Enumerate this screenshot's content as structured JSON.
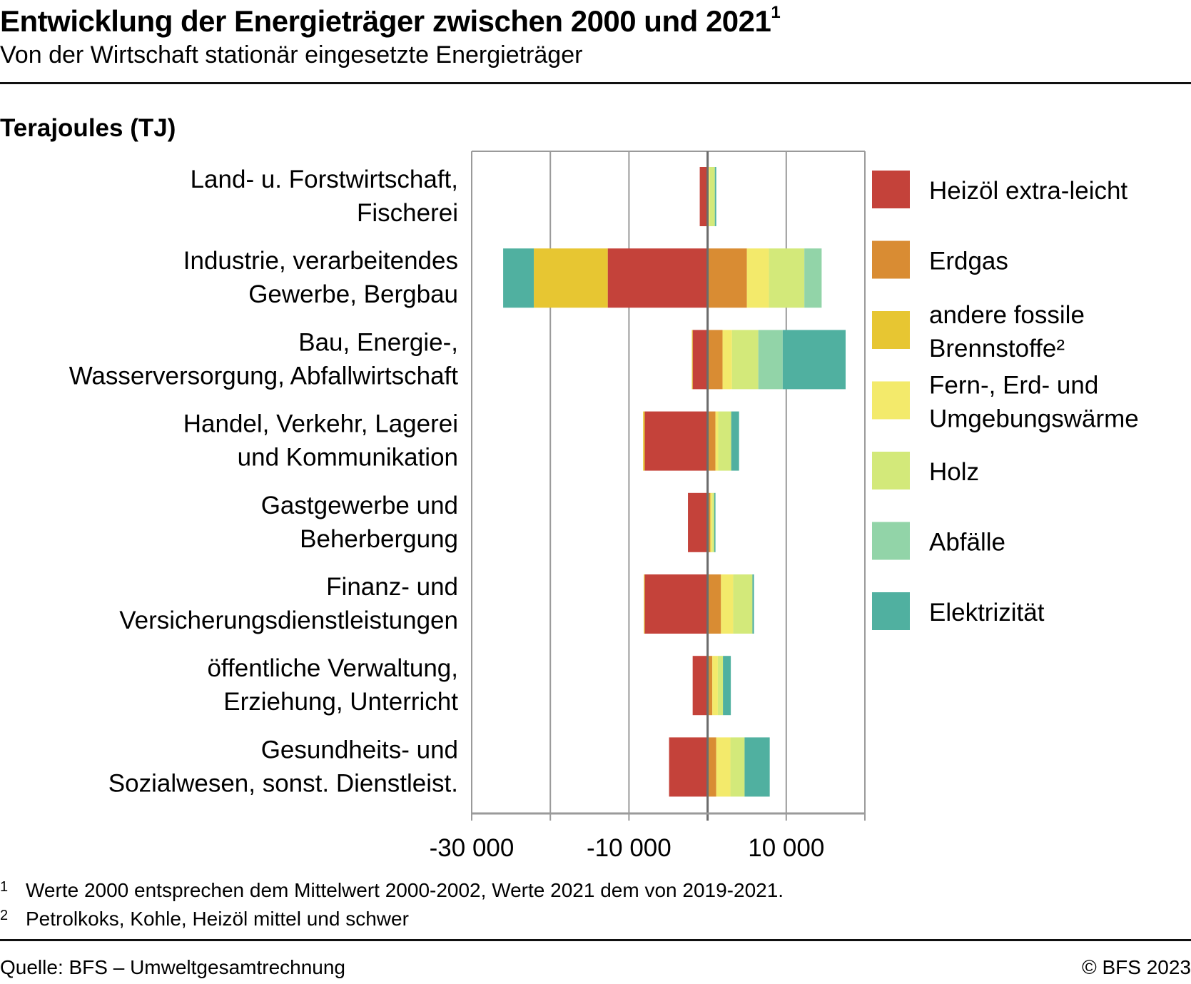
{
  "header": {
    "title": "Entwicklung der Energieträger zwischen 2000 und 2021",
    "title_footnote_mark": "1",
    "subtitle": "Von der Wirtschaft stationär eingesetzte Energieträger"
  },
  "chart_data": {
    "type": "bar",
    "orientation": "horizontal",
    "stacked": "diverging",
    "title": "Entwicklung der Energieträger zwischen 2000 und 2021",
    "subtitle": "Von der Wirtschaft stationär eingesetzte Energieträger",
    "unit_label": "Terajoules (TJ)",
    "xlabel": "",
    "ylabel": "",
    "xlim": [
      -30000,
      20000
    ],
    "x_gridlines": [
      -30000,
      -20000,
      -10000,
      0,
      10000,
      20000
    ],
    "x_tick_labels": [
      {
        "value": -30000,
        "label": "-30 000"
      },
      {
        "value": -10000,
        "label": "-10 000"
      },
      {
        "value": 10000,
        "label": "10 000"
      }
    ],
    "grid": true,
    "legend_position": "right",
    "categories": [
      [
        "Land- u. Forstwirtschaft,",
        "Fischerei"
      ],
      [
        "Industrie, verarbeitendes",
        "Gewerbe, Bergbau"
      ],
      [
        "Bau, Energie-,",
        "Wasserversorgung, Abfallwirtschaft"
      ],
      [
        "Handel, Verkehr, Lagerei",
        "und Kommunikation"
      ],
      [
        "Gastgewerbe und",
        "Beherbergung"
      ],
      [
        "Finanz- und",
        "Versicherungsdienstleistungen"
      ],
      [
        "öffentliche Verwaltung,",
        "Erziehung, Unterricht"
      ],
      [
        "Gesundheits- und",
        "Sozialwesen, sonst. Dienstleist."
      ]
    ],
    "series": [
      {
        "name": "Heizöl extra-leicht",
        "legend_lines": [
          "Heizöl extra-leicht"
        ],
        "color": "#c4423a",
        "values": [
          -1000,
          -12700,
          -1900,
          -8000,
          -2500,
          -8000,
          -1900,
          -4900
        ]
      },
      {
        "name": "Erdgas",
        "legend_lines": [
          "Erdgas"
        ],
        "color": "#d98c33",
        "values": [
          100,
          5000,
          1900,
          1000,
          350,
          1700,
          600,
          1100
        ]
      },
      {
        "name": "andere fossile Brennstoffe²",
        "legend_lines": [
          "andere fossile",
          "Brennstoffe²"
        ],
        "color": "#e7c632",
        "values": [
          0,
          -9400,
          -100,
          -200,
          0,
          -100,
          0,
          0
        ]
      },
      {
        "name": "Fern-, Erd- und Umgebungswärme",
        "legend_lines": [
          "Fern-, Erd- und",
          "Umgebungswärme"
        ],
        "color": "#f3ea6b",
        "values": [
          200,
          2800,
          1200,
          350,
          250,
          1550,
          700,
          1800
        ]
      },
      {
        "name": "Holz",
        "legend_lines": [
          "Holz"
        ],
        "color": "#d3e97a",
        "values": [
          600,
          4500,
          3350,
          1650,
          250,
          2450,
          650,
          1800
        ]
      },
      {
        "name": "Abfälle",
        "legend_lines": [
          "Abfälle"
        ],
        "color": "#92d4a8",
        "values": [
          50,
          2200,
          3100,
          0,
          0,
          0,
          0,
          0
        ]
      },
      {
        "name": "Elektrizität",
        "legend_lines": [
          "Elektrizität"
        ],
        "color": "#50b0a0",
        "values": [
          150,
          -3900,
          8000,
          1000,
          150,
          200,
          1000,
          3200
        ]
      }
    ]
  },
  "footnotes": [
    {
      "mark": "1",
      "text": "Werte 2000 entsprechen dem Mittelwert 2000-2002, Werte 2021 dem von 2019-2021."
    },
    {
      "mark": "2",
      "text": "Petrolkoks, Kohle, Heizöl mittel und schwer"
    }
  ],
  "footer": {
    "source": "Quelle: BFS – Umweltgesamtrechnung",
    "copyright": "© BFS 2023"
  }
}
